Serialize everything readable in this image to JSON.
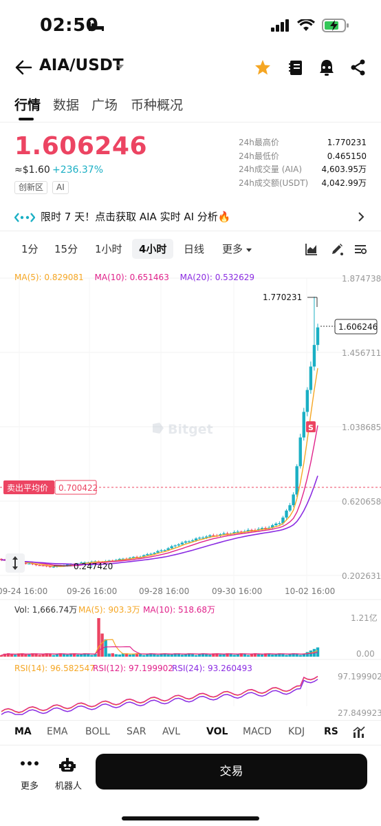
{
  "status_bar": {
    "time": "02:50"
  },
  "nav": {
    "pair": "AIA/USDT"
  },
  "tabs": [
    "行情",
    "数据",
    "广场",
    "币种概况"
  ],
  "price": {
    "last": "1.606246",
    "usd": "≈$1.60",
    "change": "+236.37%",
    "tags": [
      "创新区",
      "AI"
    ]
  },
  "stats": [
    {
      "label": "24h最高价",
      "value": "1.770231"
    },
    {
      "label": "24h最低价",
      "value": "0.465150"
    },
    {
      "label": "24h成交量 (AIA)",
      "value": "4,603.95万"
    },
    {
      "label": "24h成交额(USDT)",
      "value": "4,042.99万"
    }
  ],
  "banner": {
    "text": "限时 7 天！点击获取 AIA 实时 AI 分析🔥"
  },
  "intervals": [
    "1分",
    "15分",
    "1小时",
    "4小时",
    "日线",
    "更多"
  ],
  "chart": {
    "ma_legend": [
      {
        "label": "MA(5): 0.829081",
        "color": "#f5a623"
      },
      {
        "label": "MA(10): 0.651463",
        "color": "#e0218a"
      },
      {
        "label": "MA(20): 0.532629",
        "color": "#8a2be2"
      }
    ],
    "y_labels": [
      "1.874738",
      "1.456711",
      "1.038685",
      "0.620658",
      "0.202631"
    ],
    "current_price_tag": "1.606246",
    "high_marker": "1.770231",
    "low_marker": "0.247420",
    "avg_sell_label": "卖出平均价",
    "avg_sell_value": "0.700422",
    "x_labels": [
      "09-24 16:00",
      "09-26 16:00",
      "09-28 16:00",
      "09-30 16:00",
      "10-02 16:00"
    ],
    "watermark": "Bitget",
    "marker_s": "S",
    "vol_legend": [
      {
        "label": "Vol: 1,666.74万",
        "color": "#333333"
      },
      {
        "label": "MA(5): 903.3万",
        "color": "#f5a623"
      },
      {
        "label": "MA(10): 518.68万",
        "color": "#e0218a"
      }
    ],
    "vol_y_labels": [
      "1.21亿",
      "0.00"
    ],
    "rsi_legend": [
      {
        "label": "RSI(14): 96.582547",
        "color": "#f5a623"
      },
      {
        "label": "RSI(12): 97.199902",
        "color": "#e0218a"
      },
      {
        "label": "RSI(24): 93.260493",
        "color": "#8a2be2"
      }
    ],
    "rsi_y_labels": [
      "97.199902",
      "27.849923"
    ]
  },
  "chart_data": {
    "type": "candlestick",
    "x_ticks": [
      "09-24 16:00",
      "09-26 16:00",
      "09-28 16:00",
      "09-30 16:00",
      "10-02 16:00"
    ],
    "ylim": [
      0.202631,
      1.874738
    ],
    "y_ticks": [
      1.874738,
      1.456711,
      1.038685,
      0.620658,
      0.202631
    ],
    "close_sample": [
      0.29,
      0.28,
      0.27,
      0.26,
      0.25,
      0.26,
      0.27,
      0.28,
      0.28,
      0.29,
      0.3,
      0.31,
      0.33,
      0.35,
      0.38,
      0.4,
      0.42,
      0.43,
      0.44,
      0.45,
      0.46,
      0.47,
      0.5,
      0.62,
      1.18,
      1.606246
    ],
    "high": 1.770231,
    "low": 0.24742,
    "current": 1.606246,
    "avg_sell": 0.700422
  },
  "indicators": [
    "MA",
    "EMA",
    "BOLL",
    "SAR",
    "AVL",
    "VOL",
    "MACD",
    "KDJ",
    "RS"
  ],
  "bottom": {
    "more_label": "更多",
    "robot_label": "机器人",
    "trade_label": "交易"
  },
  "colors": {
    "up": "#1aafc4",
    "down": "#ec4462",
    "accent": "#f5a623"
  }
}
